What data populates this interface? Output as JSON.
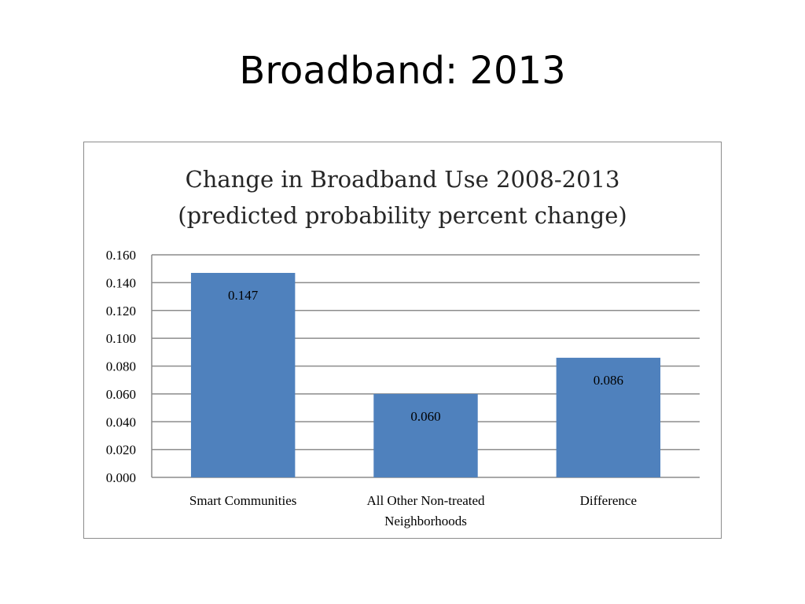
{
  "slide": {
    "title": "Broadband:  2013"
  },
  "chart_data": {
    "type": "bar",
    "title_lines": [
      "Change in Broadband Use 2008-2013",
      "(predicted probability percent change)"
    ],
    "categories": [
      [
        "Smart Communities"
      ],
      [
        "All Other Non-treated",
        "Neighborhoods"
      ],
      [
        "Difference"
      ]
    ],
    "values": [
      0.147,
      0.06,
      0.086
    ],
    "data_labels": [
      "0.147",
      "0.060",
      "0.086"
    ],
    "ylim": [
      0,
      0.16
    ],
    "yticks": [
      "0.000",
      "0.020",
      "0.040",
      "0.060",
      "0.080",
      "0.100",
      "0.120",
      "0.140",
      "0.160"
    ],
    "grid": true,
    "legend": "none",
    "bar_color": "#4f81bd"
  }
}
